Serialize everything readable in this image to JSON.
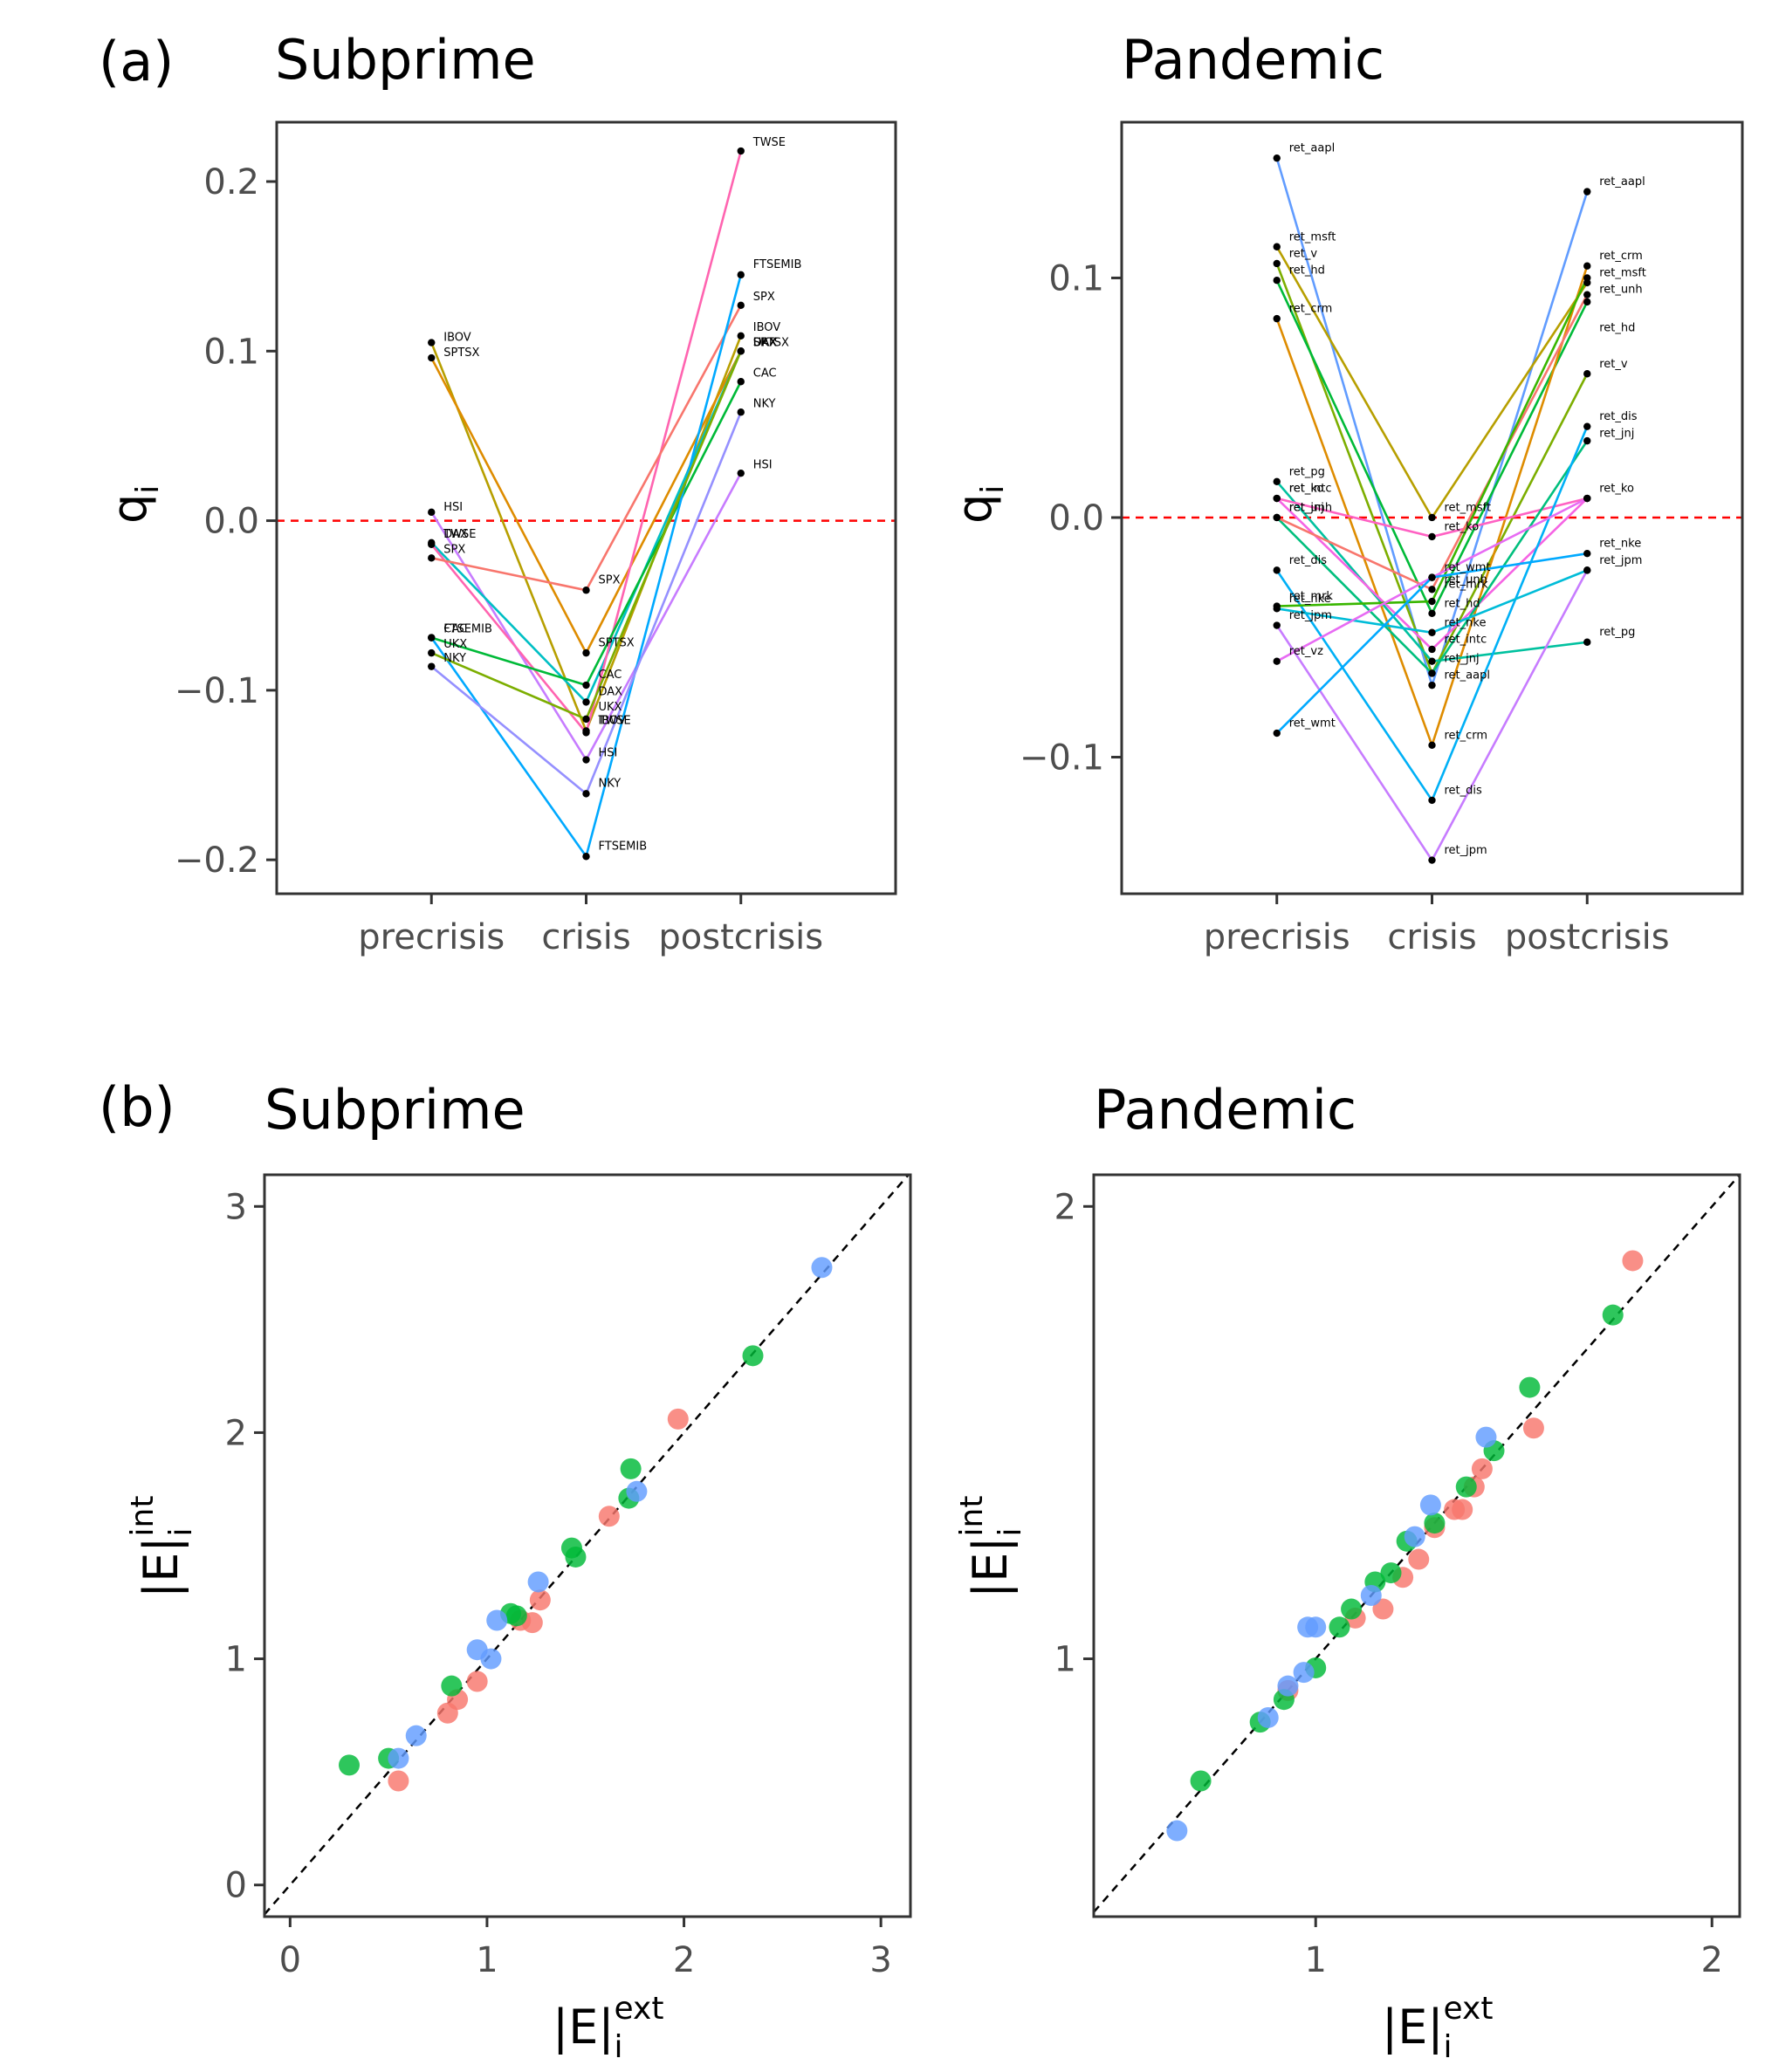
{
  "colors": {
    "background": "#ffffff",
    "zero_line": "#ff0000",
    "diagonal": "#000000",
    "axis_frame": "#333333",
    "point": "#000000",
    "red_group": "#F8766D",
    "green_group": "#00BA38",
    "blue_group": "#619CFF"
  },
  "panels": {
    "a_label": "(a)",
    "b_label": "(b)"
  },
  "chart_data": [
    {
      "type": "line",
      "title": "Subprime",
      "xlabel": "",
      "ylabel": "q",
      "ylabel_sub": "i",
      "categories": [
        "precrisis",
        "crisis",
        "postcrisis"
      ],
      "ylim": [
        -0.22,
        0.235
      ],
      "yticks": [
        -0.2,
        -0.1,
        0.0,
        0.1,
        0.2
      ],
      "ytick_labels": [
        "−0.2",
        "−0.1",
        "0.0",
        "0.1",
        "0.2"
      ],
      "reference_line": 0,
      "series": [
        {
          "name": "IBOV",
          "color": "#B79F00",
          "values": [
            0.105,
            -0.124,
            0.109
          ]
        },
        {
          "name": "SPTSX",
          "color": "#DE8C00",
          "values": [
            0.096,
            -0.078,
            0.1
          ]
        },
        {
          "name": "HSI",
          "color": "#C77CFF",
          "values": [
            0.005,
            -0.141,
            0.028
          ]
        },
        {
          "name": "DAX",
          "color": "#00BFC4",
          "values": [
            -0.013,
            -0.107,
            0.1
          ]
        },
        {
          "name": "TWSE",
          "color": "#FF64B0",
          "values": [
            -0.014,
            -0.125,
            0.218
          ]
        },
        {
          "name": "SPX",
          "color": "#F8766D",
          "values": [
            -0.022,
            -0.041,
            0.127
          ]
        },
        {
          "name": "CAC",
          "color": "#00BA38",
          "values": [
            -0.069,
            -0.097,
            0.082
          ]
        },
        {
          "name": "FTSEMIB",
          "color": "#00A9FF",
          "values": [
            -0.069,
            -0.198,
            0.145
          ]
        },
        {
          "name": "UKX",
          "color": "#7CAE00",
          "values": [
            -0.078,
            -0.117,
            0.1
          ]
        },
        {
          "name": "NKY",
          "color": "#9590FF",
          "values": [
            -0.086,
            -0.161,
            0.064
          ]
        }
      ],
      "point_labels": [
        {
          "text": "IBOV",
          "cat": 0,
          "y": 0.105
        },
        {
          "text": "SPTSX",
          "cat": 0,
          "y": 0.096
        },
        {
          "text": "HSI",
          "cat": 0,
          "y": 0.005
        },
        {
          "text": "DAX",
          "cat": 0,
          "y": -0.011
        },
        {
          "text": "TWSE",
          "cat": 0,
          "y": -0.011
        },
        {
          "text": "SPX",
          "cat": 0,
          "y": -0.02
        },
        {
          "text": "CAC",
          "cat": 0,
          "y": -0.067
        },
        {
          "text": "FTSEMIB",
          "cat": 0,
          "y": -0.067
        },
        {
          "text": "UKX",
          "cat": 0,
          "y": -0.076
        },
        {
          "text": "NKY",
          "cat": 0,
          "y": -0.084
        },
        {
          "text": "SPX",
          "cat": 1,
          "y": -0.038
        },
        {
          "text": "SPTSX",
          "cat": 1,
          "y": -0.075
        },
        {
          "text": "CAC",
          "cat": 1,
          "y": -0.094
        },
        {
          "text": "DAX",
          "cat": 1,
          "y": -0.104
        },
        {
          "text": "UKX",
          "cat": 1,
          "y": -0.113
        },
        {
          "text": "IBOV",
          "cat": 1,
          "y": -0.121
        },
        {
          "text": "TWSE",
          "cat": 1,
          "y": -0.121
        },
        {
          "text": "HSI",
          "cat": 1,
          "y": -0.14
        },
        {
          "text": "NKY",
          "cat": 1,
          "y": -0.158
        },
        {
          "text": "FTSEMIB",
          "cat": 1,
          "y": -0.195
        },
        {
          "text": "TWSE",
          "cat": 2,
          "y": 0.22
        },
        {
          "text": "FTSEMIB",
          "cat": 2,
          "y": 0.148
        },
        {
          "text": "SPX",
          "cat": 2,
          "y": 0.129
        },
        {
          "text": "IBOV",
          "cat": 2,
          "y": 0.111
        },
        {
          "text": "DAX",
          "cat": 2,
          "y": 0.102
        },
        {
          "text": "UKX",
          "cat": 2,
          "y": 0.102
        },
        {
          "text": "SPTSX",
          "cat": 2,
          "y": 0.102
        },
        {
          "text": "CAC",
          "cat": 2,
          "y": 0.084
        },
        {
          "text": "NKY",
          "cat": 2,
          "y": 0.066
        },
        {
          "text": "HSI",
          "cat": 2,
          "y": 0.03
        }
      ]
    },
    {
      "type": "line",
      "title": "Pandemic",
      "xlabel": "",
      "ylabel": "q",
      "ylabel_sub": "i",
      "categories": [
        "precrisis",
        "crisis",
        "postcrisis"
      ],
      "ylim": [
        -0.157,
        0.165
      ],
      "yticks": [
        -0.1,
        0.0,
        0.1
      ],
      "ytick_labels": [
        "−0.1",
        "0.0",
        "0.1"
      ],
      "reference_line": 0,
      "series": [
        {
          "name": "ret_aapl",
          "color": "#619CFF",
          "values": [
            0.15,
            -0.07,
            0.136
          ]
        },
        {
          "name": "ret_msft",
          "color": "#B79F00",
          "values": [
            0.113,
            0.0,
            0.098
          ]
        },
        {
          "name": "ret_v",
          "color": "#7CAE00",
          "values": [
            0.106,
            -0.065,
            0.06
          ]
        },
        {
          "name": "ret_hd",
          "color": "#00BA38",
          "values": [
            0.099,
            -0.04,
            0.09
          ]
        },
        {
          "name": "ret_crm",
          "color": "#DE8C00",
          "values": [
            0.083,
            -0.095,
            0.105
          ]
        },
        {
          "name": "ret_pg",
          "color": "#00C19F",
          "values": [
            0.015,
            -0.06,
            -0.052
          ]
        },
        {
          "name": "ret_ko",
          "color": "#FF61C3",
          "values": [
            0.008,
            -0.008,
            0.008
          ]
        },
        {
          "name": "ret_intc",
          "color": "#F564E3",
          "values": [
            0.008,
            -0.055,
            0.008
          ]
        },
        {
          "name": "ret_jnj",
          "color": "#00BF7D",
          "values": [
            0.0,
            -0.065,
            0.032
          ]
        },
        {
          "name": "ret_unh",
          "color": "#F8766D",
          "values": [
            0.0,
            -0.03,
            0.093
          ]
        },
        {
          "name": "ret_dis",
          "color": "#00B0F6",
          "values": [
            -0.022,
            -0.118,
            0.038
          ]
        },
        {
          "name": "ret_mrk",
          "color": "#39B600",
          "values": [
            -0.037,
            -0.035,
            0.1
          ]
        },
        {
          "name": "ret_nke",
          "color": "#00BCD8",
          "values": [
            -0.038,
            -0.048,
            -0.022
          ]
        },
        {
          "name": "ret_jpm",
          "color": "#C77CFF",
          "values": [
            -0.045,
            -0.143,
            -0.022
          ]
        },
        {
          "name": "ret_vz",
          "color": "#E76BF3",
          "values": [
            -0.06,
            -0.025,
            0.008
          ]
        },
        {
          "name": "ret_wmt",
          "color": "#00A9FF",
          "values": [
            -0.09,
            -0.025,
            -0.015
          ]
        }
      ],
      "point_labels": [
        {
          "text": "ret_aapl",
          "cat": 0,
          "y": 0.152
        },
        {
          "text": "ret_msft",
          "cat": 0,
          "y": 0.115
        },
        {
          "text": "ret_v",
          "cat": 0,
          "y": 0.108
        },
        {
          "text": "ret_hd",
          "cat": 0,
          "y": 0.101
        },
        {
          "text": "ret_crm",
          "cat": 0,
          "y": 0.085
        },
        {
          "text": "ret_pg",
          "cat": 0,
          "y": 0.017
        },
        {
          "text": "ret_ko",
          "cat": 0,
          "y": 0.01
        },
        {
          "text": "ret_intc",
          "cat": 0,
          "y": 0.01
        },
        {
          "text": "ret_jnj",
          "cat": 0,
          "y": 0.002
        },
        {
          "text": "ret_unh",
          "cat": 0,
          "y": 0.002
        },
        {
          "text": "ret_dis",
          "cat": 0,
          "y": -0.02
        },
        {
          "text": "ret_mrk",
          "cat": 0,
          "y": -0.035
        },
        {
          "text": "ret_nke",
          "cat": 0,
          "y": -0.036
        },
        {
          "text": "ret_jpm",
          "cat": 0,
          "y": -0.043
        },
        {
          "text": "ret_vz",
          "cat": 0,
          "y": -0.058
        },
        {
          "text": "ret_wmt",
          "cat": 0,
          "y": -0.088
        },
        {
          "text": "ret_msft",
          "cat": 1,
          "y": 0.002
        },
        {
          "text": "ret_ko",
          "cat": 1,
          "y": -0.006
        },
        {
          "text": "ret_wmt",
          "cat": 1,
          "y": -0.023
        },
        {
          "text": "ret_unh",
          "cat": 1,
          "y": -0.028
        },
        {
          "text": "ret_mrk",
          "cat": 1,
          "y": -0.03
        },
        {
          "text": "ret_hd",
          "cat": 1,
          "y": -0.038
        },
        {
          "text": "ret_nke",
          "cat": 1,
          "y": -0.046
        },
        {
          "text": "ret_intc",
          "cat": 1,
          "y": -0.053
        },
        {
          "text": "ret_jnj",
          "cat": 1,
          "y": -0.061
        },
        {
          "text": "ret_aapl",
          "cat": 1,
          "y": -0.068
        },
        {
          "text": "ret_crm",
          "cat": 1,
          "y": -0.093
        },
        {
          "text": "ret_dis",
          "cat": 1,
          "y": -0.116
        },
        {
          "text": "ret_jpm",
          "cat": 1,
          "y": -0.141
        },
        {
          "text": "ret_aapl",
          "cat": 2,
          "y": 0.138
        },
        {
          "text": "ret_crm",
          "cat": 2,
          "y": 0.107
        },
        {
          "text": "ret_msft",
          "cat": 2,
          "y": 0.1
        },
        {
          "text": "ret_unh",
          "cat": 2,
          "y": 0.093
        },
        {
          "text": "ret_hd",
          "cat": 2,
          "y": 0.077
        },
        {
          "text": "ret_v",
          "cat": 2,
          "y": 0.062
        },
        {
          "text": "ret_dis",
          "cat": 2,
          "y": 0.04
        },
        {
          "text": "ret_jnj",
          "cat": 2,
          "y": 0.033
        },
        {
          "text": "ret_ko",
          "cat": 2,
          "y": 0.01
        },
        {
          "text": "ret_nke",
          "cat": 2,
          "y": -0.013
        },
        {
          "text": "ret_jpm",
          "cat": 2,
          "y": -0.02
        },
        {
          "text": "ret_pg",
          "cat": 2,
          "y": -0.05
        }
      ]
    },
    {
      "type": "scatter",
      "title": "Subprime",
      "xlabel": "|E|",
      "xlabel_sup": "ext",
      "xlabel_sub": "i",
      "ylabel": "|E|",
      "ylabel_sup": "int",
      "ylabel_sub": "i",
      "xlim": [
        -0.13,
        3.15
      ],
      "ylim": [
        -0.14,
        3.14
      ],
      "xticks": [
        0,
        1,
        2,
        3
      ],
      "yticks": [
        0,
        1,
        2,
        3
      ],
      "xtick_labels": [
        "0",
        "1",
        "2",
        "3"
      ],
      "ytick_labels": [
        "0",
        "1",
        "2",
        "3"
      ],
      "diagonal": true,
      "series": [
        {
          "name": "red",
          "color": "#F8766D",
          "x": [
            0.55,
            0.8,
            0.85,
            0.95,
            1.17,
            1.23,
            1.27,
            1.62,
            1.97
          ],
          "y": [
            0.46,
            0.76,
            0.82,
            0.9,
            1.17,
            1.16,
            1.26,
            1.63,
            2.06
          ]
        },
        {
          "name": "green",
          "color": "#00BA38",
          "x": [
            0.3,
            0.5,
            0.82,
            1.12,
            1.15,
            1.43,
            1.45,
            1.72,
            1.73,
            2.35
          ],
          "y": [
            0.53,
            0.56,
            0.88,
            1.2,
            1.19,
            1.49,
            1.45,
            1.71,
            1.84,
            2.34
          ]
        },
        {
          "name": "blue",
          "color": "#619CFF",
          "x": [
            0.55,
            0.64,
            0.95,
            1.02,
            1.05,
            1.26,
            1.76,
            2.7
          ],
          "y": [
            0.56,
            0.66,
            1.04,
            1.0,
            1.17,
            1.34,
            1.74,
            2.73
          ]
        }
      ]
    },
    {
      "type": "scatter",
      "title": "Pandemic",
      "xlabel": "|E|",
      "xlabel_sup": "ext",
      "xlabel_sub": "i",
      "ylabel": "|E|",
      "ylabel_sup": "int",
      "ylabel_sub": "i",
      "xlim": [
        0.44,
        2.07
      ],
      "ylim": [
        0.43,
        2.07
      ],
      "xticks": [
        1,
        2
      ],
      "yticks": [
        1,
        2
      ],
      "xtick_labels": [
        "1",
        "2"
      ],
      "ytick_labels": [
        "1",
        "2"
      ],
      "diagonal": true,
      "series": [
        {
          "name": "red",
          "color": "#F8766D",
          "x": [
            0.93,
            1.1,
            1.17,
            1.22,
            1.26,
            1.3,
            1.35,
            1.37,
            1.4,
            1.42,
            1.55,
            1.8
          ],
          "y": [
            0.93,
            1.09,
            1.11,
            1.18,
            1.22,
            1.29,
            1.33,
            1.33,
            1.38,
            1.42,
            1.51,
            1.88
          ]
        },
        {
          "name": "green",
          "color": "#00BA38",
          "x": [
            0.71,
            0.86,
            0.92,
            1.0,
            1.06,
            1.09,
            1.15,
            1.19,
            1.23,
            1.3,
            1.38,
            1.45,
            1.54,
            1.75
          ],
          "y": [
            0.73,
            0.86,
            0.91,
            0.98,
            1.07,
            1.11,
            1.17,
            1.19,
            1.26,
            1.3,
            1.38,
            1.46,
            1.6,
            1.76
          ]
        },
        {
          "name": "blue",
          "color": "#619CFF",
          "x": [
            0.65,
            0.88,
            0.93,
            0.97,
            0.98,
            1.0,
            1.14,
            1.25,
            1.29,
            1.43
          ],
          "y": [
            0.62,
            0.87,
            0.94,
            0.97,
            1.07,
            1.07,
            1.14,
            1.27,
            1.34,
            1.49
          ]
        }
      ]
    }
  ]
}
